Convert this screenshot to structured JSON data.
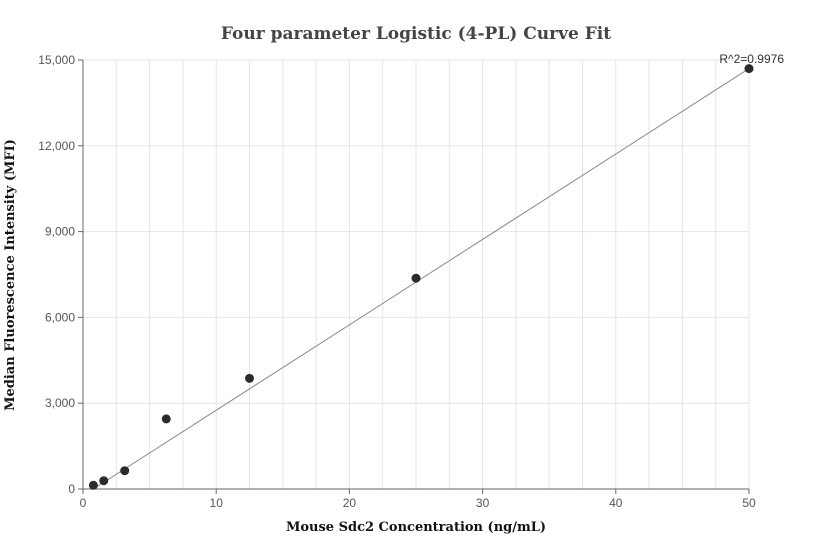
{
  "chart_data": {
    "type": "scatter",
    "title": "Four parameter Logistic (4-PL) Curve Fit",
    "xlabel": "Mouse Sdc2 Concentration (ng/mL)",
    "ylabel": "Median Fluorescence Intensity (MFI)",
    "xlim": [
      0,
      50
    ],
    "ylim": [
      0,
      15000
    ],
    "x_ticks": [
      0,
      10,
      20,
      30,
      40,
      50
    ],
    "y_ticks": [
      0,
      3000,
      6000,
      9000,
      12000,
      15000
    ],
    "x_tick_labels": [
      "0",
      "10",
      "20",
      "30",
      "40",
      "50"
    ],
    "y_tick_labels": [
      "0",
      "3,000",
      "6,000",
      "9,000",
      "12,000",
      "15,000"
    ],
    "grid": true,
    "points": [
      {
        "x": 0.78,
        "y": 130
      },
      {
        "x": 1.56,
        "y": 290
      },
      {
        "x": 3.13,
        "y": 640
      },
      {
        "x": 6.25,
        "y": 2450
      },
      {
        "x": 12.5,
        "y": 3870
      },
      {
        "x": 25,
        "y": 7370
      },
      {
        "x": 50,
        "y": 14700
      }
    ],
    "fit_line": {
      "x": [
        0.78,
        50
      ],
      "y": [
        0,
        14700
      ]
    },
    "annotation": "R^2=0.9976",
    "colors": {
      "points": "#2b2b2b",
      "line": "#888888",
      "grid": "#e4e4ec",
      "axis": "#666666"
    }
  }
}
